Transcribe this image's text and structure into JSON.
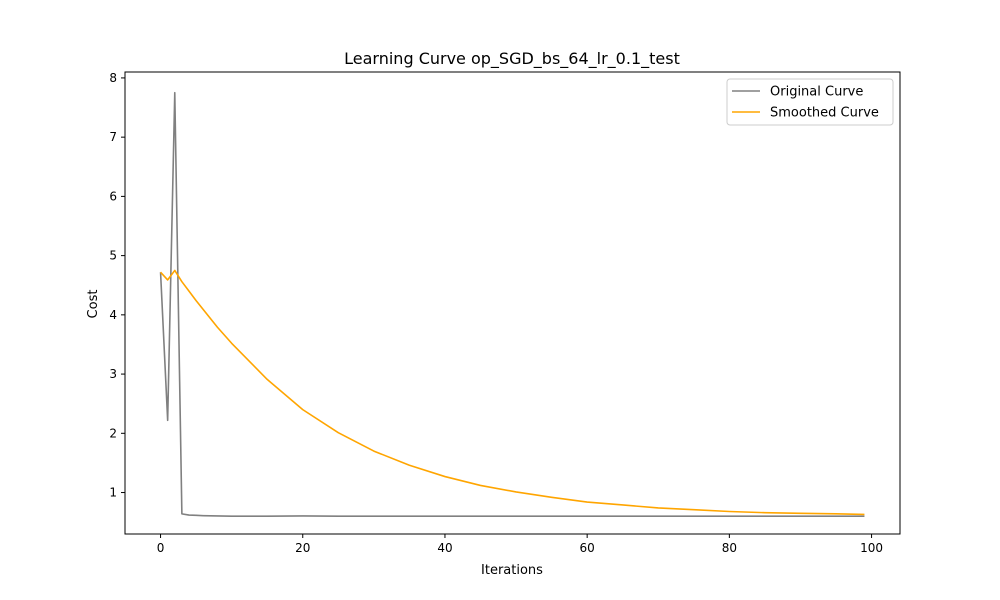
{
  "chart_data": {
    "type": "line",
    "title": "Learning Curve op_SGD_bs_64_lr_0.1_test",
    "xlabel": "Iterations",
    "ylabel": "Cost",
    "xlim": [
      -5,
      104
    ],
    "ylim": [
      0.3,
      8.1
    ],
    "xticks": [
      0,
      20,
      40,
      60,
      80,
      100
    ],
    "yticks": [
      1,
      2,
      3,
      4,
      5,
      6,
      7,
      8
    ],
    "xtick_labels": [
      "0",
      "20",
      "40",
      "60",
      "80",
      "100"
    ],
    "ytick_labels": [
      "1",
      "2",
      "3",
      "4",
      "5",
      "6",
      "7",
      "8"
    ],
    "grid": false,
    "legend_position": "top-right",
    "series": [
      {
        "name": "Original Curve",
        "color": "#808080",
        "x": [
          0,
          1,
          2,
          3,
          4,
          5,
          6,
          8,
          10,
          15,
          20,
          25,
          30,
          40,
          50,
          60,
          70,
          80,
          90,
          99
        ],
        "y": [
          4.72,
          2.22,
          7.75,
          0.64,
          0.62,
          0.615,
          0.61,
          0.605,
          0.6,
          0.6,
          0.605,
          0.6,
          0.6,
          0.6,
          0.6,
          0.6,
          0.6,
          0.6,
          0.6,
          0.6
        ]
      },
      {
        "name": "Smoothed Curve",
        "color": "#ffa500",
        "x": [
          0,
          1,
          2,
          3,
          4,
          5,
          6,
          8,
          10,
          15,
          20,
          25,
          30,
          35,
          40,
          45,
          50,
          55,
          60,
          65,
          70,
          75,
          80,
          85,
          90,
          95,
          99
        ],
        "y": [
          4.72,
          4.59,
          4.75,
          4.56,
          4.4,
          4.24,
          4.09,
          3.79,
          3.52,
          2.91,
          2.4,
          2.01,
          1.7,
          1.46,
          1.27,
          1.12,
          1.01,
          0.92,
          0.84,
          0.79,
          0.74,
          0.71,
          0.68,
          0.66,
          0.65,
          0.64,
          0.63
        ]
      }
    ]
  }
}
